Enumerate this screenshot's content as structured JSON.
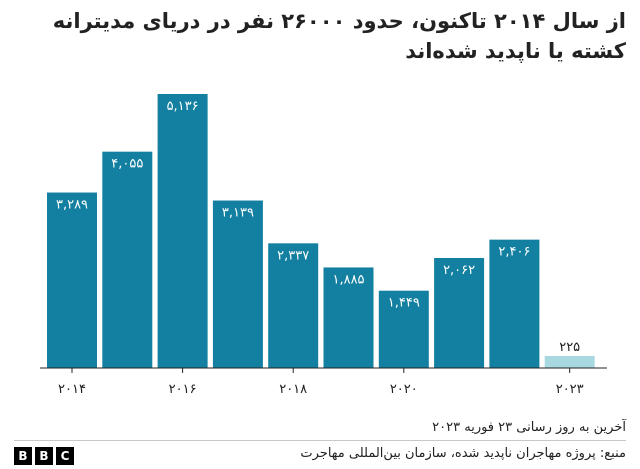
{
  "title": "از سال ۲۰۱۴ تاکنون، حدود ۲۶۰۰۰ نفر در دریای مدیترانه کشته یا ناپدید شده‌اند",
  "updated": "آخرین به روز رسانی ۲۳ فوریه ۲۰۲۳",
  "source": "منبع: پروژه مهاجران ناپدید شده، سازمان بین‌المللی مهاجرت",
  "logo": [
    "B",
    "B",
    "C"
  ],
  "colors": {
    "bar": "#1380a1",
    "bar_partial": "#a8d8e0",
    "label_on_bar": "#ffffff",
    "label_above": "#222222",
    "axis": "#222222"
  },
  "chart_data": {
    "type": "bar",
    "title": "از سال ۲۰۱۴ تاکنون، حدود ۲۶۰۰۰ نفر در دریای مدیترانه کشته یا ناپدید شده‌اند",
    "xlabel": "",
    "ylabel": "",
    "ylim": [
      0,
      5500
    ],
    "grid": false,
    "categories": [
      "2014",
      "2015",
      "2016",
      "2017",
      "2018",
      "2019",
      "2020",
      "2021",
      "2022",
      "2023"
    ],
    "values": [
      3289,
      4055,
      5136,
      3139,
      2337,
      1885,
      1449,
      2062,
      2406,
      225
    ],
    "value_labels": [
      "۳,۲۸۹",
      "۴,۰۵۵",
      "۵,۱۳۶",
      "۳,۱۳۹",
      "۲,۳۳۷",
      "۱,۸۸۵",
      "۱,۴۴۹",
      "۲,۰۶۲",
      "۲,۴۰۶",
      "۲۲۵"
    ],
    "x_tick_labels": [
      "۲۰۱۴",
      "",
      "۲۰۱۶",
      "",
      "۲۰۱۸",
      "",
      "۲۰۲۰",
      "",
      "",
      "۲۰۲۳"
    ],
    "partial_index": 9
  }
}
